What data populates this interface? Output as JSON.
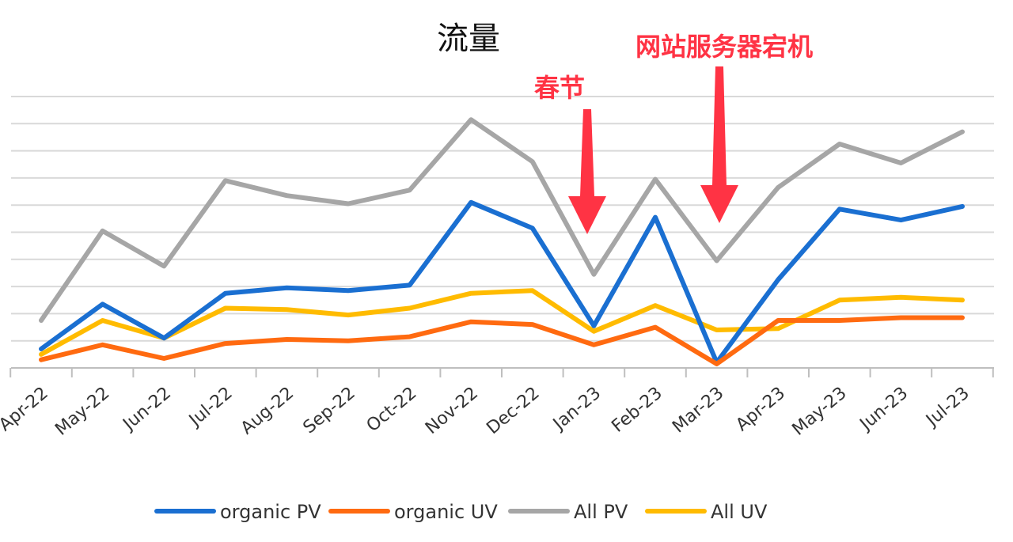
{
  "chart_data": {
    "type": "line",
    "title": "流量",
    "categories": [
      "Apr-22",
      "May-22",
      "Jun-22",
      "Jul-22",
      "Aug-22",
      "Sep-22",
      "Oct-22",
      "Nov-22",
      "Dec-22",
      "Jan-23",
      "Feb-23",
      "Mar-23",
      "Apr-23",
      "May-23",
      "Jun-23",
      "Jul-23"
    ],
    "series": [
      {
        "name": "organic  PV",
        "color": "#1a6fd1",
        "values": [
          0.7,
          2.35,
          1.1,
          2.75,
          2.95,
          2.85,
          3.05,
          6.1,
          5.15,
          1.55,
          5.55,
          0.2,
          3.25,
          5.85,
          5.45,
          5.95
        ]
      },
      {
        "name": "organic  UV",
        "color": "#ff6a10",
        "values": [
          0.3,
          0.85,
          0.35,
          0.9,
          1.05,
          1.0,
          1.15,
          1.7,
          1.6,
          0.85,
          1.5,
          0.15,
          1.75,
          1.75,
          1.85,
          1.85
        ]
      },
      {
        "name": "All  PV",
        "color": "#a6a6a6",
        "values": [
          1.75,
          5.05,
          3.75,
          6.9,
          6.35,
          6.05,
          6.55,
          9.15,
          7.6,
          3.45,
          6.95,
          3.95,
          6.65,
          8.25,
          7.55,
          8.7
        ]
      },
      {
        "name": "All  UV",
        "color": "#ffbb00",
        "values": [
          0.5,
          1.75,
          1.1,
          2.2,
          2.15,
          1.95,
          2.2,
          2.75,
          2.85,
          1.35,
          2.3,
          1.4,
          1.45,
          2.5,
          2.6,
          2.5
        ]
      }
    ],
    "ylim": [
      0,
      10
    ],
    "grid": true,
    "legend": "bottom",
    "annotations": [
      {
        "text": "春节",
        "category": "Jan-23",
        "color": "#ff3344"
      },
      {
        "text": "网站服务器宕机",
        "category": "Mar-23",
        "color": "#ff3344"
      }
    ]
  }
}
